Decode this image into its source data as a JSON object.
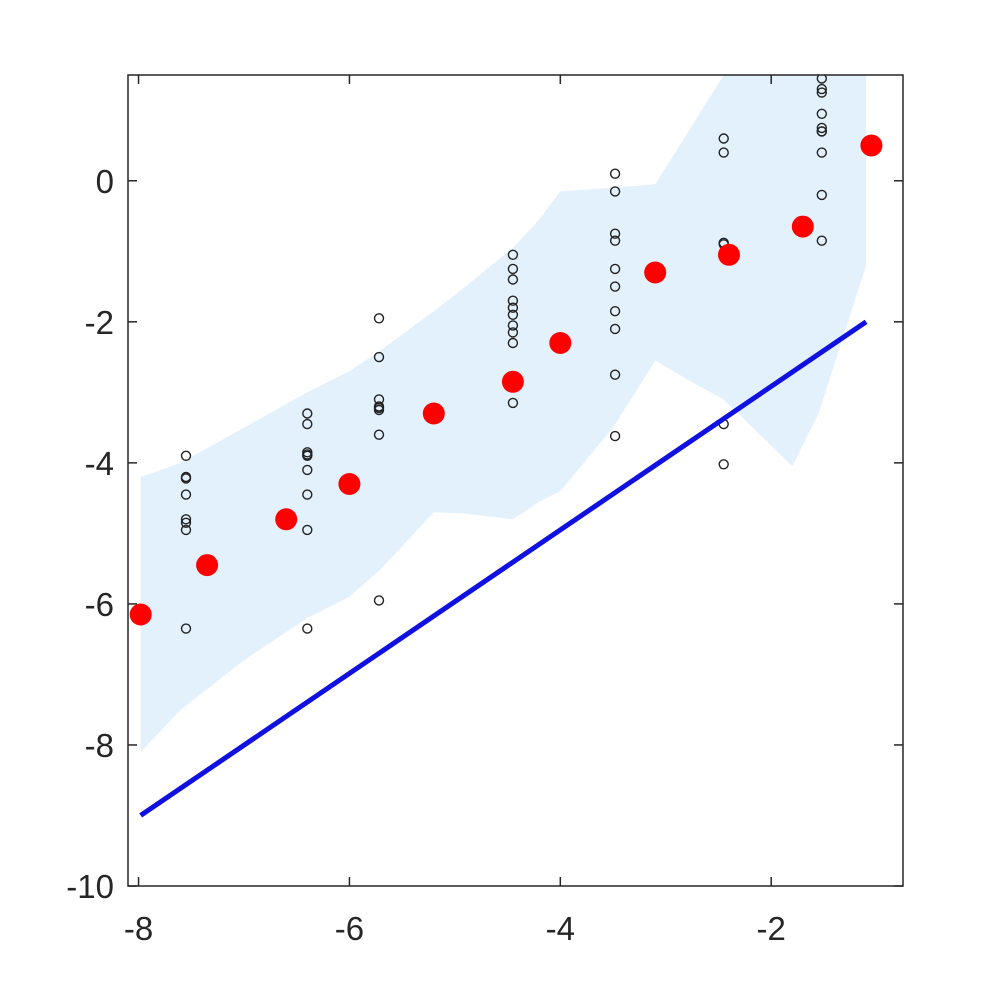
{
  "chart_data": {
    "type": "scatter",
    "title": "",
    "xlabel": "",
    "ylabel": "",
    "xlim": [
      -8.1,
      -0.75
    ],
    "ylim": [
      -10,
      1.5
    ],
    "xticks": [
      -8,
      -6,
      -4,
      -2
    ],
    "yticks": [
      -10,
      -8,
      -6,
      -4,
      -2,
      0
    ],
    "xtick_labels": [
      "-8",
      "-6",
      "-4",
      "-2"
    ],
    "ytick_labels": [
      "-10",
      "-8",
      "-6",
      "-4",
      "-2",
      "0"
    ],
    "grid": false,
    "legend": "none",
    "colors": {
      "band": "#e3f1fd",
      "line": "#1010e0",
      "means": "#ff0000",
      "observations": "#222222",
      "axes": "#262626"
    },
    "band": {
      "x": [
        -7.98,
        -7.6,
        -7.0,
        -6.4,
        -6.0,
        -5.7,
        -5.2,
        -4.9,
        -4.45,
        -4.2,
        -4.0,
        -3.5,
        -3.1,
        -2.7,
        -2.45,
        -1.8,
        -1.55,
        -1.1
      ],
      "upper": [
        -4.2,
        -4.0,
        -3.5,
        -3.0,
        -2.7,
        -2.4,
        -1.85,
        -1.5,
        -0.95,
        -0.55,
        -0.15,
        -0.1,
        -0.05,
        0.9,
        1.5,
        1.5,
        1.5,
        1.5
      ],
      "lower": [
        -8.1,
        -7.5,
        -6.8,
        -6.2,
        -5.9,
        -5.5,
        -4.7,
        -4.72,
        -4.8,
        -4.55,
        -4.4,
        -3.5,
        -2.55,
        -2.9,
        -3.1,
        -4.05,
        -3.3,
        -1.2
      ]
    },
    "series": [
      {
        "kind": "line",
        "x": [
          -7.98,
          -1.1
        ],
        "y": [
          -9.0,
          -2.0
        ]
      },
      {
        "kind": "scatter-filled",
        "x": [
          -7.98,
          -7.35,
          -6.6,
          -6.0,
          -5.2,
          -4.45,
          -4.0,
          -3.1,
          -2.4,
          -1.7,
          -1.05
        ],
        "y": [
          -6.15,
          -5.45,
          -4.8,
          -4.3,
          -3.3,
          -2.85,
          -2.3,
          -1.3,
          -1.05,
          -0.65,
          0.5
        ]
      },
      {
        "kind": "scatter-open",
        "x": [
          -7.55,
          -7.55,
          -7.55,
          -7.55,
          -7.55,
          -7.55,
          -7.55,
          -7.55,
          -6.4,
          -6.4,
          -6.4,
          -6.4,
          -6.4,
          -6.4,
          -6.4,
          -6.4,
          -6.4,
          -5.72,
          -5.72,
          -5.72,
          -5.72,
          -5.72,
          -5.72,
          -5.72,
          -5.72,
          -4.45,
          -4.45,
          -4.45,
          -4.45,
          -4.45,
          -4.45,
          -4.45,
          -4.45,
          -4.45,
          -4.45,
          -4.45,
          -3.48,
          -3.48,
          -3.48,
          -3.48,
          -3.48,
          -3.48,
          -3.48,
          -3.48,
          -3.48,
          -3.48,
          -2.45,
          -2.45,
          -2.45,
          -2.45,
          -2.45,
          -2.45,
          -1.52,
          -1.52,
          -1.52,
          -1.52,
          -1.52,
          -1.52,
          -1.52,
          -1.52,
          -1.52,
          -1.52
        ],
        "y": [
          -3.9,
          -4.2,
          -4.22,
          -4.45,
          -4.8,
          -4.85,
          -4.95,
          -6.35,
          -3.3,
          -3.45,
          -3.85,
          -3.9,
          -4.1,
          -4.45,
          -4.95,
          -6.35,
          -3.88,
          -1.95,
          -2.5,
          -3.1,
          -3.2,
          -3.22,
          -3.25,
          -3.6,
          -5.95,
          -1.05,
          -1.25,
          -1.4,
          -1.7,
          -1.8,
          -1.9,
          -2.05,
          -2.15,
          -2.3,
          -2.8,
          -3.15,
          0.1,
          -0.15,
          -0.75,
          -0.85,
          -1.25,
          -1.5,
          -1.85,
          -2.1,
          -2.75,
          -3.62,
          0.6,
          0.4,
          -0.88,
          -0.9,
          -3.45,
          -4.02,
          1.45,
          1.25,
          0.95,
          0.75,
          0.7,
          0.7,
          0.4,
          -0.2,
          -0.85,
          1.3
        ]
      }
    ]
  }
}
